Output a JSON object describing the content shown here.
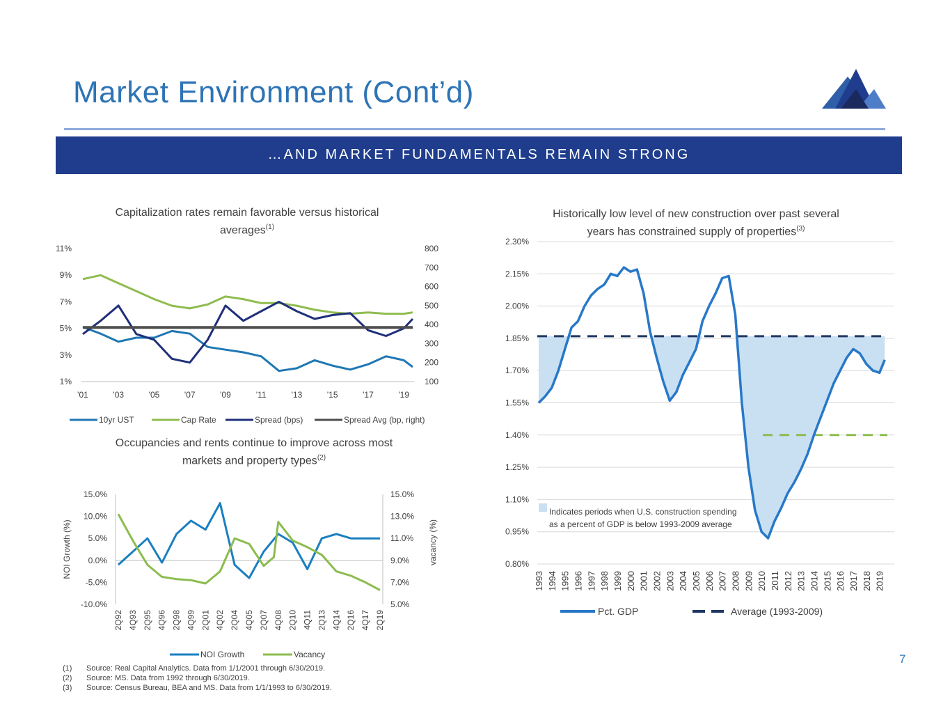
{
  "header": {
    "title": "Market Environment (Cont’d)",
    "banner": "…AND MARKET FUNDAMENTALS REMAIN STRONG"
  },
  "colors": {
    "title_blue": "#2e74b5",
    "banner_navy": "#1f3d8c",
    "rule": "#8eaadb",
    "ust": "#1f77b4",
    "cap": "#8fbc4f",
    "spread": "#1f2f7a",
    "spread_avg": "#4d4d4d",
    "noi": "#1a7fc1",
    "vacancy": "#8cbc4e",
    "gdp": "#2878c8",
    "avg": "#1f3864",
    "fill": "#c9e0f2"
  },
  "panels": {
    "cap_rates": {
      "title": "Capitalization rates remain favorable versus historical",
      "title2": "averages",
      "sup": "(1)"
    },
    "occupancy": {
      "title": "Occupancies and rents continue to improve across most",
      "title2": "markets and property types",
      "sup": "(2)"
    },
    "construction": {
      "title": "Historically low level of new construction over past several",
      "title2": "years has constrained supply of properties",
      "sup": "(3)"
    }
  },
  "chart_data": [
    {
      "type": "line",
      "x_ticks": [
        "'01",
        "'03",
        "'05",
        "'07",
        "'09",
        "'11",
        "'13",
        "'15",
        "'17",
        "'19"
      ],
      "y_left": {
        "ticks": [
          "11%",
          "9%",
          "7%",
          "5%",
          "3%",
          "1%"
        ],
        "range": [
          1,
          11
        ]
      },
      "y_right": {
        "ticks": [
          "800",
          "700",
          "600",
          "500",
          "400",
          "300",
          "200",
          "100"
        ],
        "range": [
          100,
          800
        ]
      },
      "legend": [
        "10yr UST",
        "Cap Rate",
        "Spread (bps)",
        "Spread Avg (bp, right)"
      ],
      "series": [
        {
          "name": "10yr UST",
          "axis": "left",
          "x": [
            2001,
            2002,
            2003,
            2004,
            2005,
            2006,
            2007,
            2008,
            2009,
            2010,
            2011,
            2012,
            2013,
            2014,
            2015,
            2016,
            2017,
            2018,
            2019,
            2019.5
          ],
          "values": [
            5.1,
            4.6,
            4.0,
            4.3,
            4.3,
            4.8,
            4.6,
            3.6,
            3.4,
            3.2,
            2.9,
            1.8,
            2.0,
            2.6,
            2.2,
            1.9,
            2.3,
            2.9,
            2.6,
            2.1
          ]
        },
        {
          "name": "Cap Rate",
          "axis": "left",
          "x": [
            2001,
            2002,
            2003,
            2004,
            2005,
            2006,
            2007,
            2008,
            2009,
            2010,
            2011,
            2012,
            2013,
            2014,
            2015,
            2016,
            2017,
            2018,
            2019,
            2019.5
          ],
          "values": [
            8.7,
            9.0,
            8.4,
            7.8,
            7.2,
            6.7,
            6.5,
            6.8,
            7.4,
            7.2,
            6.9,
            6.9,
            6.7,
            6.4,
            6.2,
            6.1,
            6.2,
            6.1,
            6.1,
            6.2
          ]
        },
        {
          "name": "Spread (bps)",
          "axis": "right",
          "x": [
            2001,
            2002,
            2003,
            2004,
            2005,
            2006,
            2007,
            2008,
            2009,
            2010,
            2011,
            2012,
            2013,
            2014,
            2015,
            2016,
            2017,
            2018,
            2019,
            2019.5
          ],
          "values": [
            350,
            420,
            500,
            350,
            320,
            220,
            200,
            320,
            500,
            420,
            470,
            520,
            470,
            430,
            450,
            460,
            370,
            340,
            380,
            430
          ]
        },
        {
          "name": "Spread Avg (bp, right)",
          "axis": "right",
          "x": [
            2001,
            2019.5
          ],
          "values": [
            385,
            385
          ]
        }
      ]
    },
    {
      "type": "line",
      "x_ticks": [
        "2Q92",
        "4Q93",
        "2Q95",
        "4Q96",
        "2Q98",
        "4Q99",
        "2Q01",
        "4Q02",
        "2Q04",
        "4Q05",
        "2Q07",
        "4Q08",
        "2Q10",
        "4Q11",
        "2Q13",
        "4Q14",
        "2Q16",
        "4Q17",
        "2Q19"
      ],
      "y_left": {
        "label": "NOI Growth (%)",
        "ticks": [
          "15.0%",
          "10.0%",
          "5.0%",
          "0.0%",
          "-5.0%",
          "-10.0%"
        ],
        "range": [
          -10,
          15
        ]
      },
      "y_right": {
        "label": "vacancy (%)",
        "ticks": [
          "15.0%",
          "13.0%",
          "11.0%",
          "9.0%",
          "7.0%",
          "5.0%"
        ],
        "range": [
          5,
          15
        ]
      },
      "legend": [
        "NOI Growth",
        "Vacancy"
      ],
      "series": [
        {
          "name": "NOI Growth",
          "axis": "left",
          "x": [
            0,
            1,
            2,
            3,
            4,
            5,
            6,
            7,
            8,
            9,
            10,
            11,
            12,
            13,
            14,
            15,
            16,
            17,
            18
          ],
          "values": [
            -1,
            2,
            5,
            -0.5,
            6,
            9,
            7,
            13,
            -1,
            -4,
            2,
            6,
            4,
            -2,
            5,
            6,
            5,
            5,
            5
          ]
        },
        {
          "name": "Vacancy",
          "axis": "right",
          "x": [
            0,
            1,
            2,
            3,
            4,
            5,
            6,
            7,
            8,
            9,
            10,
            10.7,
            11,
            12,
            13,
            14,
            15,
            16,
            17,
            18
          ],
          "values": [
            13.2,
            10.8,
            8.6,
            7.5,
            7.3,
            7.2,
            6.9,
            8.0,
            11.0,
            10.5,
            8.5,
            9.3,
            12.5,
            10.8,
            10.2,
            9.5,
            8.0,
            7.6,
            7.0,
            6.3
          ]
        }
      ]
    },
    {
      "type": "area",
      "x_ticks": [
        "1993",
        "1994",
        "1995",
        "1996",
        "1997",
        "1998",
        "1999",
        "2000",
        "2001",
        "2002",
        "2003",
        "2004",
        "2005",
        "2006",
        "2007",
        "2008",
        "2009",
        "2010",
        "2011",
        "2012",
        "2013",
        "2014",
        "2015",
        "2016",
        "2017",
        "2018",
        "2019"
      ],
      "y_axis": {
        "ticks": [
          "2.30%",
          "2.15%",
          "2.00%",
          "1.85%",
          "1.70%",
          "1.55%",
          "1.40%",
          "1.25%",
          "1.10%",
          "0.95%",
          "0.80%"
        ],
        "range": [
          0.8,
          2.3
        ]
      },
      "legend": [
        "Pct. GDP",
        "Average (1993-2009)"
      ],
      "annotation": [
        "Indicates periods when U.S. construction spending",
        "as a percent of GDP is below 1993-2009 average"
      ],
      "average_1993_2009": 1.86,
      "average_2010_2019": 1.4,
      "series": [
        {
          "name": "Pct. GDP",
          "x": [
            1993,
            1993.5,
            1994,
            1994.5,
            1995,
            1995.5,
            1996,
            1996.5,
            1997,
            1997.5,
            1998,
            1998.5,
            1999,
            1999.5,
            2000,
            2000.5,
            2001,
            2001.5,
            2002,
            2002.5,
            2003,
            2003.5,
            2004,
            2004.5,
            2005,
            2005.5,
            2006,
            2006.5,
            2007,
            2007.5,
            2008,
            2008.5,
            2009,
            2009.5,
            2010,
            2010.5,
            2011,
            2011.5,
            2012,
            2012.5,
            2013,
            2013.5,
            2014,
            2014.5,
            2015,
            2015.5,
            2016,
            2016.5,
            2017,
            2017.5,
            2018,
            2018.5,
            2019,
            2019.4
          ],
          "values": [
            1.55,
            1.58,
            1.62,
            1.7,
            1.8,
            1.9,
            1.93,
            2.0,
            2.05,
            2.08,
            2.1,
            2.15,
            2.14,
            2.18,
            2.16,
            2.17,
            2.06,
            1.88,
            1.76,
            1.65,
            1.56,
            1.6,
            1.68,
            1.74,
            1.8,
            1.93,
            2.0,
            2.06,
            2.13,
            2.14,
            1.96,
            1.55,
            1.25,
            1.05,
            0.95,
            0.92,
            1.0,
            1.06,
            1.13,
            1.18,
            1.24,
            1.31,
            1.4,
            1.48,
            1.56,
            1.64,
            1.7,
            1.76,
            1.8,
            1.78,
            1.73,
            1.7,
            1.69,
            1.75
          ]
        }
      ]
    }
  ],
  "footnotes": [
    {
      "num": "(1)",
      "text": "Source: Real Capital Analytics. Data from 1/1/2001 through 6/30/2019."
    },
    {
      "num": "(2)",
      "text": "Source: MS. Data from 1992 through 6/30/2019."
    },
    {
      "num": "(3)",
      "text": "Source: Census Bureau, BEA and MS. Data from 1/1/1993 to 6/30/2019."
    }
  ],
  "page_number": "7"
}
